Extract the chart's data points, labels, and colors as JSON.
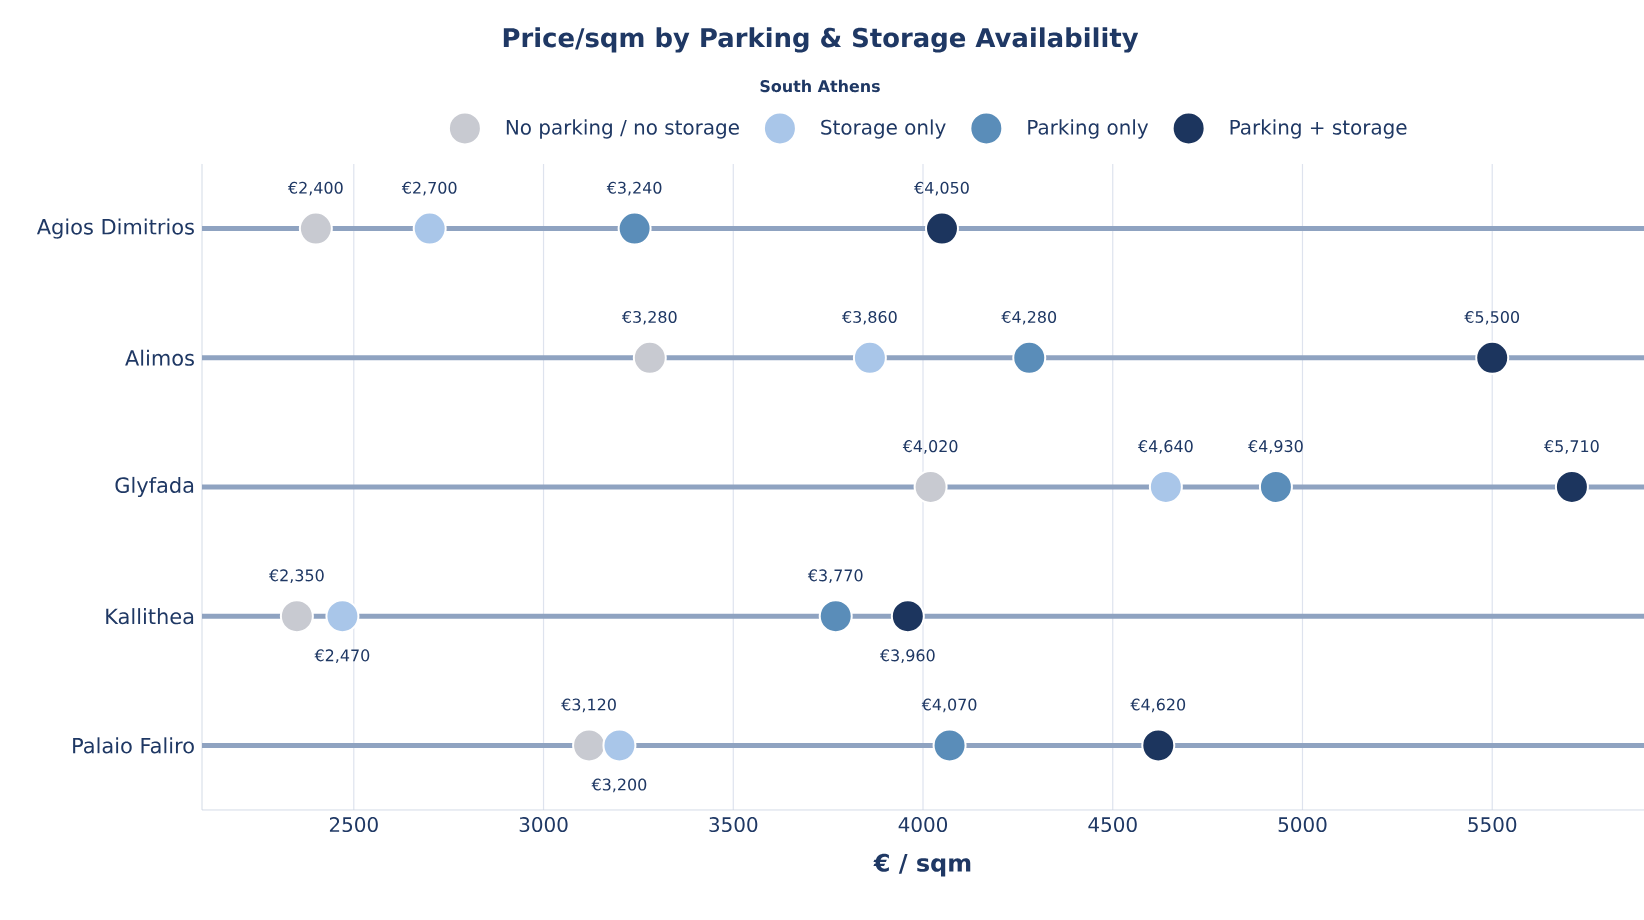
{
  "chart_data": {
    "type": "scatter",
    "title": "Price/sqm by Parking & Storage Availability",
    "subtitle": "South Athens",
    "xlabel": "€ / sqm",
    "categories": [
      "Agios Dimitrios",
      "Alimos",
      "Glyfada",
      "Kallithea",
      "Palaio Faliro"
    ],
    "orientation": "horizontal",
    "xlim": [
      2100,
      5900
    ],
    "xticks": [
      2500,
      3000,
      3500,
      4000,
      4500,
      5000,
      5500
    ],
    "grid": true,
    "legend": "top",
    "marker": "circle",
    "series": [
      {
        "name": "No parking / no storage",
        "color": "#c8cad1",
        "values": [
          2400,
          3280,
          4020,
          2350,
          3120
        ],
        "value_labels": [
          "€2,400",
          "€3,280",
          "€4,020",
          "€2,350",
          "€3,120"
        ]
      },
      {
        "name": "Storage only",
        "color": "#a9c6e9",
        "values": [
          2700,
          3860,
          4640,
          2470,
          3200
        ],
        "value_labels": [
          "€2,700",
          "€3,860",
          "€4,640",
          "€2,470",
          "€3,200"
        ]
      },
      {
        "name": "Parking only",
        "color": "#5a8db9",
        "values": [
          3240,
          4280,
          4930,
          3770,
          4070
        ],
        "value_labels": [
          "€3,240",
          "€4,280",
          "€4,930",
          "€3,770",
          "€4,070"
        ]
      },
      {
        "name": "Parking + storage",
        "color": "#1c355e",
        "values": [
          4050,
          5500,
          5710,
          3960,
          4620
        ],
        "value_labels": [
          "€4,050",
          "€5,500",
          "€5,710",
          "€3,960",
          "€4,620"
        ]
      }
    ]
  }
}
